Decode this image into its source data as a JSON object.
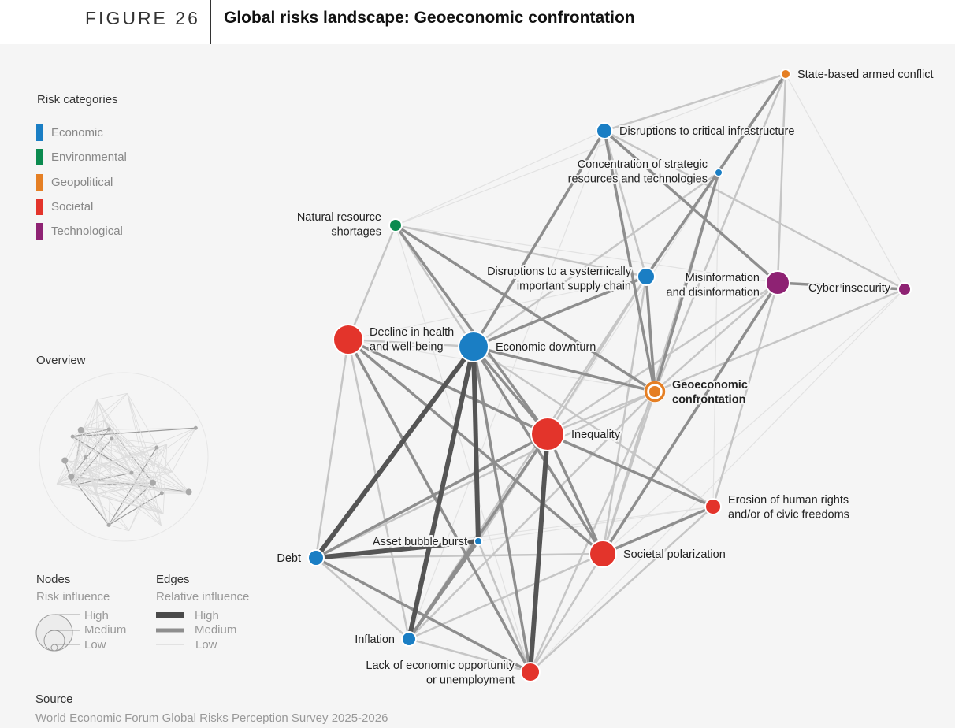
{
  "header": {
    "figure_label": "FIGURE 26",
    "title": "Global risks landscape: Geoeconomic confrontation"
  },
  "legend": {
    "categories_title": "Risk categories",
    "categories": [
      {
        "label": "Economic",
        "color": "#1a7ec4"
      },
      {
        "label": "Environmental",
        "color": "#0b8a4f"
      },
      {
        "label": "Geopolitical",
        "color": "#e57f24"
      },
      {
        "label": "Societal",
        "color": "#e3342b"
      },
      {
        "label": "Technological",
        "color": "#8e2273"
      }
    ],
    "overview_title": "Overview",
    "nodes_title": "Nodes",
    "nodes_sub": "Risk influence",
    "edges_title": "Edges",
    "edges_sub": "Relative influence",
    "levels": [
      "High",
      "Medium",
      "Low"
    ]
  },
  "source": {
    "title": "Source",
    "text": "World Economic Forum Global Risks Perception Survey 2025-2026"
  },
  "diagram": {
    "focus": "geo",
    "nodes": [
      {
        "id": "state",
        "label": [
          "State-based armed conflict"
        ],
        "category": "Geopolitical",
        "influence": "Low"
      },
      {
        "id": "infra",
        "label": [
          "Disruptions to critical infrastructure"
        ],
        "category": "Economic",
        "influence": "Low"
      },
      {
        "id": "conc",
        "label": [
          "Concentration of strategic",
          "resources and technologies"
        ],
        "category": "Economic",
        "influence": "Low"
      },
      {
        "id": "natres",
        "label": [
          "Natural resource",
          "shortages"
        ],
        "category": "Environmental",
        "influence": "Low"
      },
      {
        "id": "supply",
        "label": [
          "Disruptions to a systemically",
          "important supply chain"
        ],
        "category": "Economic",
        "influence": "Low"
      },
      {
        "id": "misinfo",
        "label": [
          "Misinformation",
          "and disinformation"
        ],
        "category": "Technological",
        "influence": "Medium"
      },
      {
        "id": "cyber",
        "label": [
          "Cyber insecurity"
        ],
        "category": "Technological",
        "influence": "Low"
      },
      {
        "id": "health",
        "label": [
          "Decline in health",
          "and well-being"
        ],
        "category": "Societal",
        "influence": "High"
      },
      {
        "id": "downturn",
        "label": [
          "Economic downturn"
        ],
        "category": "Economic",
        "influence": "High"
      },
      {
        "id": "geo",
        "label": [
          "Geoeconomic",
          "confrontation"
        ],
        "category": "Geopolitical",
        "influence": "Medium"
      },
      {
        "id": "ineq",
        "label": [
          "Inequality"
        ],
        "category": "Societal",
        "influence": "High"
      },
      {
        "id": "erosion",
        "label": [
          "Erosion of human rights",
          "and/or of civic freedoms"
        ],
        "category": "Societal",
        "influence": "Low"
      },
      {
        "id": "asset",
        "label": [
          "Asset bubble burst"
        ],
        "category": "Economic",
        "influence": "Low"
      },
      {
        "id": "polar",
        "label": [
          "Societal polarization"
        ],
        "category": "Societal",
        "influence": "High"
      },
      {
        "id": "debt",
        "label": [
          "Debt"
        ],
        "category": "Economic",
        "influence": "Low"
      },
      {
        "id": "inflation",
        "label": [
          "Inflation"
        ],
        "category": "Economic",
        "influence": "Low"
      },
      {
        "id": "lack",
        "label": [
          "Lack of economic opportunity",
          "or unemployment"
        ],
        "category": "Societal",
        "influence": "Medium"
      }
    ],
    "edges": [
      [
        "debt",
        "downturn",
        "High"
      ],
      [
        "debt",
        "asset",
        "High"
      ],
      [
        "inflation",
        "downturn",
        "High"
      ],
      [
        "lack",
        "ineq",
        "High"
      ],
      [
        "downturn",
        "asset",
        "High"
      ],
      [
        "debt",
        "lack",
        "Medium"
      ],
      [
        "misinfo",
        "polar",
        "Medium"
      ],
      [
        "health",
        "polar",
        "Medium"
      ],
      [
        "health",
        "ineq",
        "Medium"
      ],
      [
        "downturn",
        "ineq",
        "Medium"
      ],
      [
        "ineq",
        "polar",
        "Medium"
      ],
      [
        "ineq",
        "erosion",
        "Medium"
      ],
      [
        "downturn",
        "lack",
        "Medium"
      ],
      [
        "debt",
        "ineq",
        "Medium"
      ],
      [
        "polar",
        "erosion",
        "Medium"
      ],
      [
        "downturn",
        "geo",
        "Medium"
      ],
      [
        "natres",
        "geo",
        "Medium"
      ],
      [
        "supply",
        "geo",
        "Medium"
      ],
      [
        "infra",
        "geo",
        "Medium"
      ],
      [
        "conc",
        "geo",
        "Medium"
      ],
      [
        "misinfo",
        "cyber",
        "Medium"
      ],
      [
        "infra",
        "misinfo",
        "Medium"
      ],
      [
        "downturn",
        "supply",
        "Medium"
      ],
      [
        "health",
        "lack",
        "Medium"
      ],
      [
        "downturn",
        "polar",
        "Medium"
      ],
      [
        "infra",
        "downturn",
        "Medium"
      ],
      [
        "natres",
        "ineq",
        "Medium"
      ],
      [
        "state",
        "supply",
        "Medium"
      ],
      [
        "inflation",
        "ineq",
        "Medium"
      ],
      [
        "inflation",
        "asset",
        "Medium"
      ],
      [
        "state",
        "infra",
        "Low"
      ],
      [
        "state",
        "conc",
        "Low"
      ],
      [
        "state",
        "misinfo",
        "Low"
      ],
      [
        "state",
        "geo",
        "Low"
      ],
      [
        "infra",
        "cyber",
        "Low"
      ],
      [
        "infra",
        "supply",
        "Low"
      ],
      [
        "conc",
        "supply",
        "Low"
      ],
      [
        "conc",
        "downturn",
        "Low"
      ],
      [
        "natres",
        "supply",
        "Low"
      ],
      [
        "natres",
        "health",
        "Low"
      ],
      [
        "natres",
        "downturn",
        "Low"
      ],
      [
        "supply",
        "inflation",
        "Low"
      ],
      [
        "supply",
        "ineq",
        "Low"
      ],
      [
        "misinfo",
        "geo",
        "Low"
      ],
      [
        "misinfo",
        "erosion",
        "Low"
      ],
      [
        "misinfo",
        "ineq",
        "Low"
      ],
      [
        "cyber",
        "geo",
        "Low"
      ],
      [
        "health",
        "debt",
        "Low"
      ],
      [
        "health",
        "inflation",
        "Low"
      ],
      [
        "health",
        "downturn",
        "Low"
      ],
      [
        "geo",
        "ineq",
        "Low"
      ],
      [
        "geo",
        "polar",
        "Low"
      ],
      [
        "geo",
        "lack",
        "Low"
      ],
      [
        "geo",
        "inflation",
        "Low"
      ],
      [
        "geo",
        "debt",
        "Low"
      ],
      [
        "ineq",
        "asset",
        "Low"
      ],
      [
        "ineq",
        "inflation",
        "Low"
      ],
      [
        "polar",
        "lack",
        "Low"
      ],
      [
        "polar",
        "debt",
        "Low"
      ],
      [
        "polar",
        "inflation",
        "Low"
      ],
      [
        "asset",
        "lack",
        "Low"
      ],
      [
        "erosion",
        "lack",
        "Low"
      ],
      [
        "debt",
        "inflation",
        "Low"
      ],
      [
        "inflation",
        "lack",
        "Low"
      ],
      [
        "downturn",
        "erosion",
        "Low"
      ],
      [
        "supply",
        "polar",
        "Low"
      ],
      [
        "conc",
        "polar",
        "Low"
      ],
      [
        "state",
        "natres",
        "Faint"
      ],
      [
        "state",
        "cyber",
        "Faint"
      ],
      [
        "cyber",
        "polar",
        "Faint"
      ],
      [
        "cyber",
        "lack",
        "Faint"
      ],
      [
        "infra",
        "natres",
        "Faint"
      ],
      [
        "natres",
        "misinfo",
        "Faint"
      ],
      [
        "natres",
        "lack",
        "Faint"
      ],
      [
        "conc",
        "erosion",
        "Faint"
      ],
      [
        "health",
        "geo",
        "Faint"
      ],
      [
        "asset",
        "erosion",
        "Faint"
      ],
      [
        "debt",
        "erosion",
        "Faint"
      ],
      [
        "infra",
        "inflation",
        "Faint"
      ],
      [
        "conc",
        "asset",
        "Faint"
      ],
      [
        "health",
        "supply",
        "Faint"
      ]
    ]
  }
}
